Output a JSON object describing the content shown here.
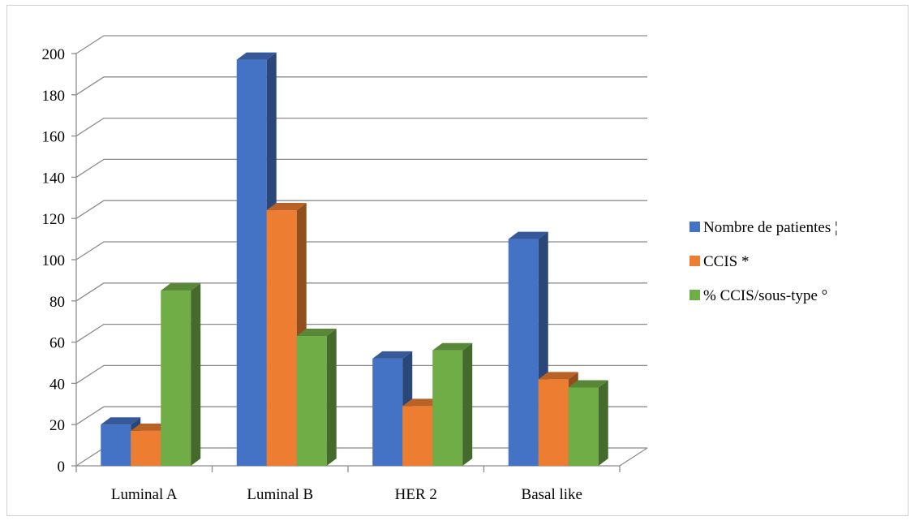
{
  "chart_data": {
    "type": "bar",
    "categories": [
      "Luminal A",
      "Luminal B",
      "HER 2",
      "Basal like"
    ],
    "series": [
      {
        "name": "Nombre de patientes ¦",
        "values": [
          20,
          197,
          52,
          110
        ],
        "color": "#4472C4"
      },
      {
        "name": "CCIS *",
        "values": [
          17,
          124,
          29,
          42
        ],
        "color": "#ED7D31"
      },
      {
        "name": "% CCIS/sous-type °",
        "values": [
          85,
          63,
          56,
          38
        ],
        "color": "#70AD47"
      }
    ],
    "ylim": [
      0,
      200
    ],
    "yticks": [
      "0",
      "20",
      "40",
      "60",
      "80",
      "100",
      "120",
      "140",
      "160",
      "180",
      "200"
    ],
    "title": "",
    "xlabel": "",
    "ylabel": "",
    "grid": true,
    "legend_position": "right",
    "style": "3d-clustered-column"
  }
}
